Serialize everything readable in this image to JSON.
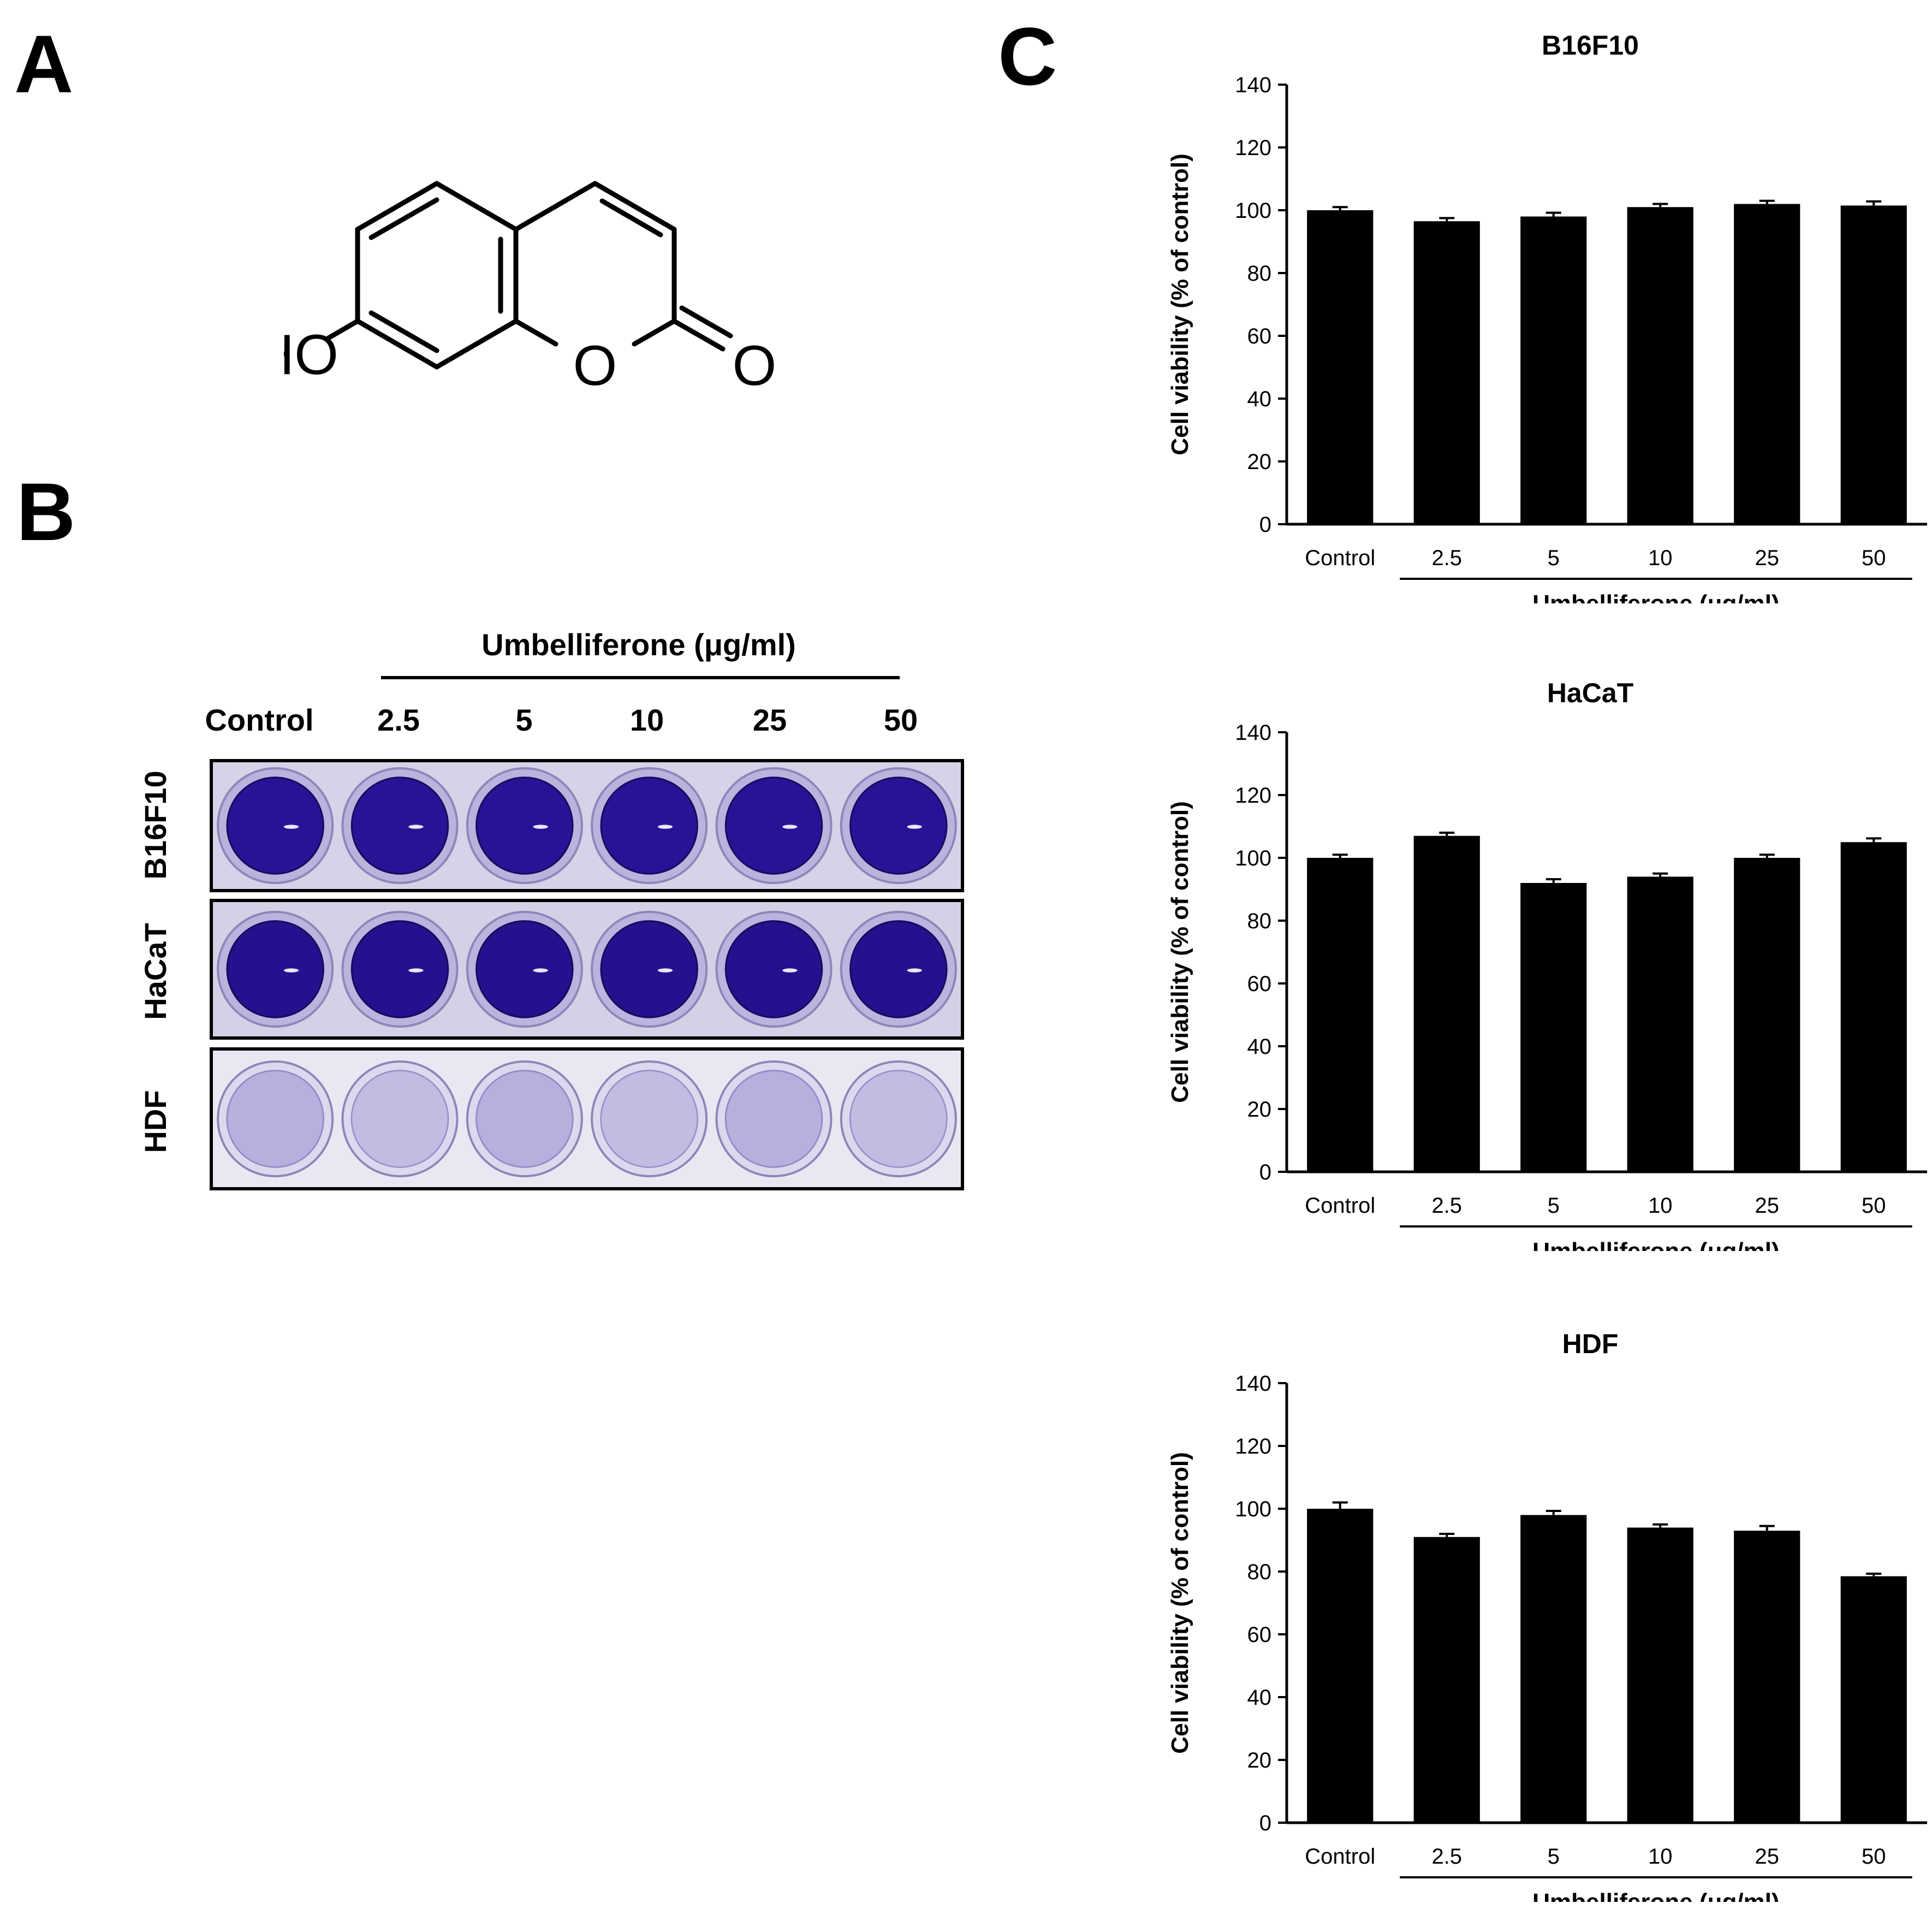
{
  "panels": {
    "a": "A",
    "b": "B",
    "c": "C"
  },
  "molecule": {
    "hydroxyl": "HO",
    "ring_oxygen": "O",
    "carbonyl_oxygen": "O"
  },
  "plate": {
    "treatment_title": "Umbelliferone (μg/ml)",
    "columns": [
      "Control",
      "2.5",
      "5",
      "10",
      "25",
      "50"
    ],
    "rows": [
      {
        "label": "B16F10",
        "stain": "dark",
        "colors": {
          "well": "#2a1296",
          "rim": "#b9b3dd",
          "plate": "#d6d2e8"
        }
      },
      {
        "label": "HaCaT",
        "stain": "dark",
        "colors": {
          "well": "#26108e",
          "rim": "#bab4de",
          "plate": "#d4d0e6"
        }
      },
      {
        "label": "HDF",
        "stain": "light",
        "colors": {
          "well": "#a89ed6",
          "rim": "#dcd9ee",
          "plate": "#e9e8f2"
        }
      }
    ]
  },
  "chart_data": [
    {
      "type": "bar",
      "title": "B16F10",
      "categories": [
        "Control",
        "2.5",
        "5",
        "10",
        "25",
        "50"
      ],
      "values": [
        100,
        96.5,
        98,
        101,
        102,
        101.5
      ],
      "errors": [
        1,
        1,
        1.2,
        1,
        1,
        1.3
      ],
      "ylabel": "Cell viability (% of control)",
      "xlabel": "Umbelliferone (μg/ml)",
      "ylim": [
        0,
        140
      ],
      "yticks": [
        0,
        20,
        40,
        60,
        80,
        100,
        120,
        140
      ],
      "bar_color": "#000000",
      "grid": false
    },
    {
      "type": "bar",
      "title": "HaCaT",
      "categories": [
        "Control",
        "2.5",
        "5",
        "10",
        "25",
        "50"
      ],
      "values": [
        100,
        107,
        92,
        94,
        100,
        105
      ],
      "errors": [
        1,
        1,
        1.2,
        1,
        1,
        1.2
      ],
      "ylabel": "Cell viability (% of control)",
      "xlabel": "Umbelliferone (μg/ml)",
      "ylim": [
        0,
        140
      ],
      "yticks": [
        0,
        20,
        40,
        60,
        80,
        100,
        120,
        140
      ],
      "bar_color": "#000000",
      "grid": false
    },
    {
      "type": "bar",
      "title": "HDF",
      "categories": [
        "Control",
        "2.5",
        "5",
        "10",
        "25",
        "50"
      ],
      "values": [
        100,
        91,
        98,
        94,
        93,
        78.5
      ],
      "errors": [
        2,
        1,
        1.3,
        1,
        1.5,
        0.8
      ],
      "ylabel": "Cell viability (% of control)",
      "xlabel": "Umbelliferone (μg/ml)",
      "ylim": [
        0,
        140
      ],
      "yticks": [
        0,
        20,
        40,
        60,
        80,
        100,
        120,
        140
      ],
      "bar_color": "#000000",
      "grid": false
    }
  ]
}
